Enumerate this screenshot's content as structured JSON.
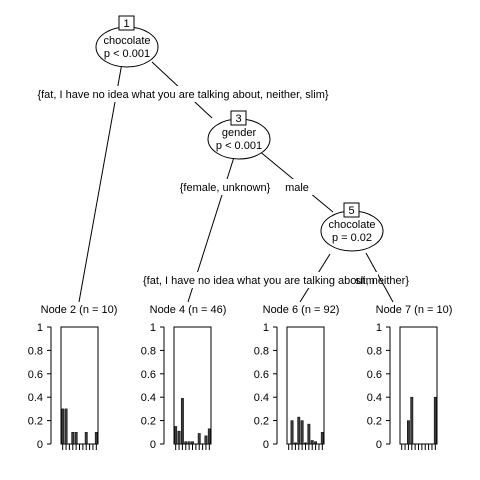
{
  "nodes": [
    {
      "id": "1",
      "variable": "chocolate",
      "pvalue": "p < 0.001"
    },
    {
      "id": "3",
      "variable": "gender",
      "pvalue": "p < 0.001"
    },
    {
      "id": "5",
      "variable": "chocolate",
      "pvalue": "p = 0.02"
    }
  ],
  "edges": [
    {
      "label": "{fat, I have no idea what you are talking about, neither, slim}"
    },
    {
      "label": "{female, unknown}"
    },
    {
      "label": "male"
    },
    {
      "label": "{fat, I have no idea what you are talking about, neither}"
    },
    {
      "label": "slim"
    }
  ],
  "terminals": [
    {
      "title": "Node 2 (n = 10)",
      "values": [
        0.3,
        0.3,
        0,
        0.1,
        0.1,
        0,
        0,
        0.1,
        0,
        0,
        0.1
      ]
    },
    {
      "title": "Node 4 (n = 46)",
      "values": [
        0.15,
        0.11,
        0.39,
        0.02,
        0.02,
        0.02,
        0,
        0.09,
        0,
        0.07,
        0.13
      ]
    },
    {
      "title": "Node 6 (n = 92)",
      "values": [
        0,
        0.2,
        0.01,
        0.23,
        0.2,
        0.01,
        0.17,
        0.03,
        0.02,
        0,
        0.1
      ]
    },
    {
      "title": "Node 7 (n = 10)",
      "values": [
        0,
        0,
        0.2,
        0.4,
        0,
        0,
        0,
        0,
        0,
        0,
        0.4
      ]
    }
  ],
  "axis_ticks": [
    "0",
    "0.2",
    "0.4",
    "0.6",
    "0.8",
    "1"
  ],
  "bar_color": "#3a3a3a"
}
